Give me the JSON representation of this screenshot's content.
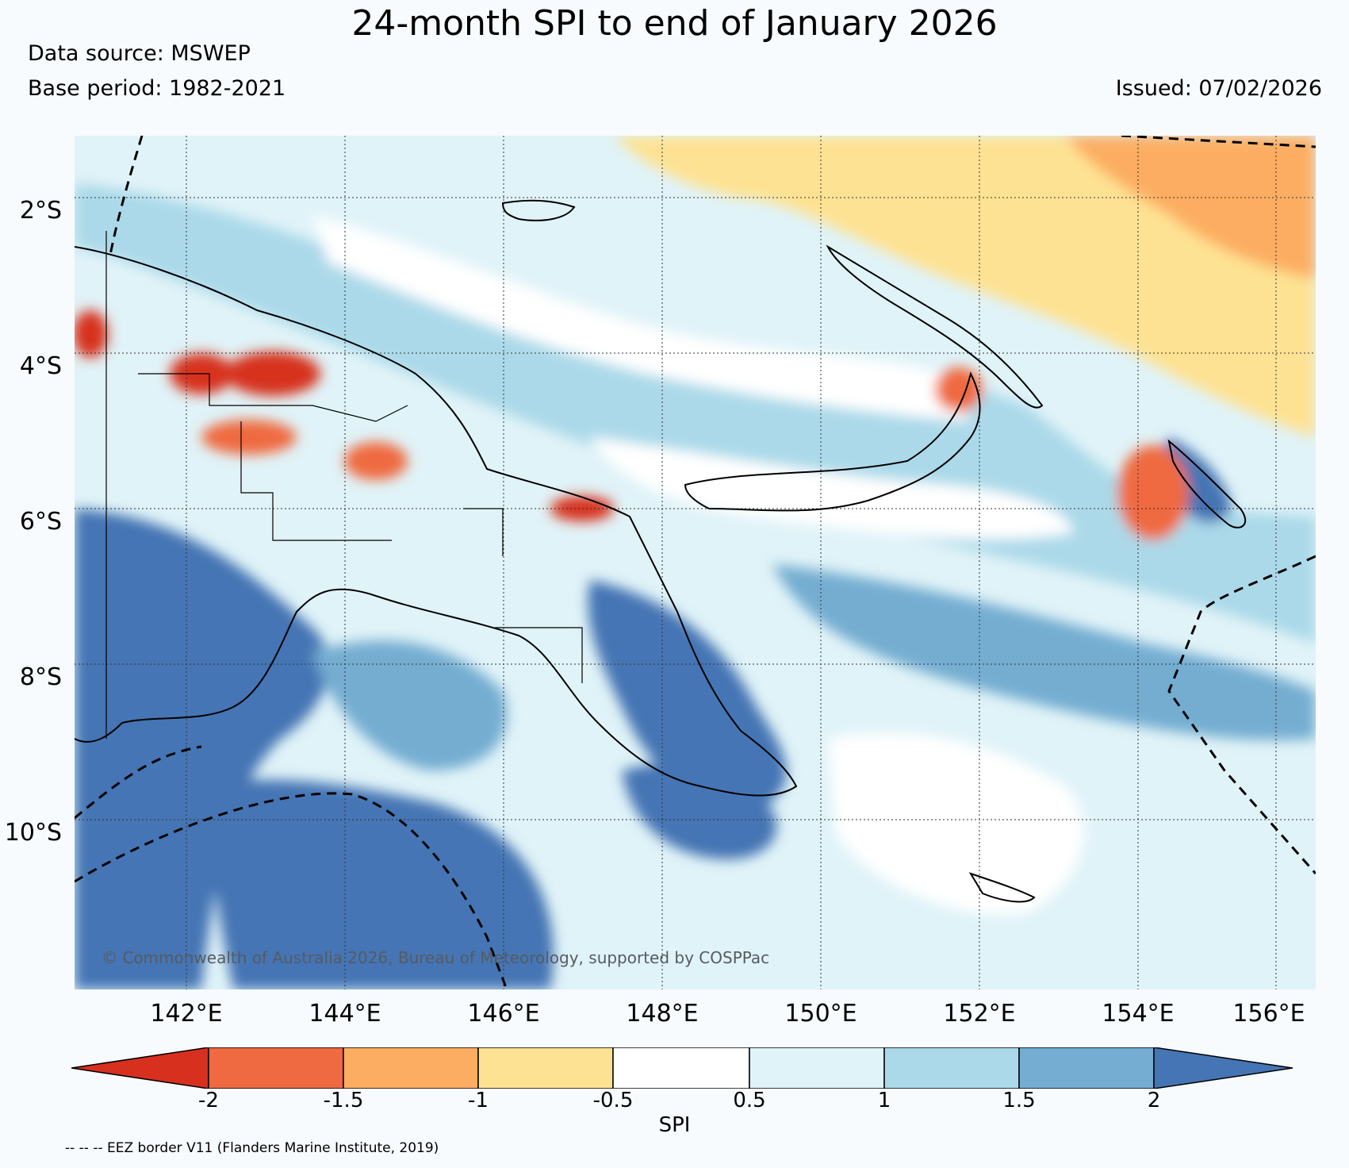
{
  "header": {
    "title": "24-month SPI to end of January 2026",
    "data_source": "Data source: MSWEP",
    "base_period": "Base period: 1982-2021",
    "issued": "Issued: 07/02/2026"
  },
  "axes": {
    "lat_labels": [
      "2°S",
      "4°S",
      "6°S",
      "8°S",
      "10°S"
    ],
    "lon_labels": [
      "142°E",
      "144°E",
      "146°E",
      "148°E",
      "150°E",
      "152°E",
      "154°E",
      "156°E"
    ]
  },
  "colorbar": {
    "label": "SPI",
    "ticks": [
      "-2",
      "-1.5",
      "-1",
      "-0.5",
      "0.5",
      "1",
      "1.5",
      "2"
    ],
    "colors": [
      "#d7301f",
      "#ef6a41",
      "#fcad62",
      "#fee293",
      "#ffffff",
      "#e0f3f8",
      "#abd9e9",
      "#74add1",
      "#4575b4"
    ]
  },
  "colors": {
    "background": "#f7fbfd",
    "ocean_base": "#e0f3f8",
    "wet_strong": "#4575b4",
    "dry_strong": "#d7301f"
  },
  "footer": {
    "copyright": "© Commonwealth of Australia 2026, Bureau of Meteorology, supported by COSPPac",
    "eez_note": "-- -- -- EEZ border V11 (Flanders Marine Institute, 2019)"
  }
}
